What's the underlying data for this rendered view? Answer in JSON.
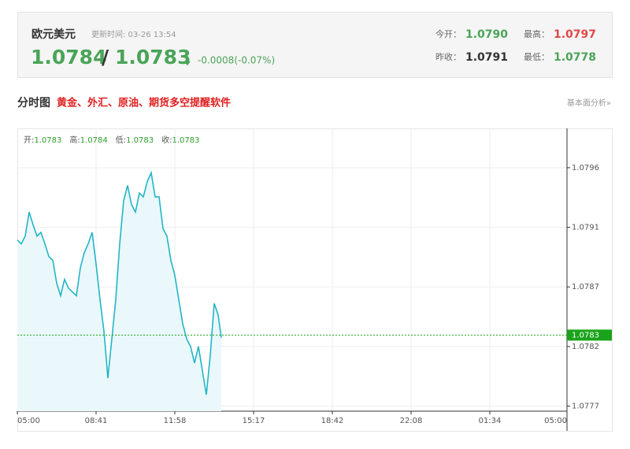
{
  "header": {
    "title": "欧元美元",
    "update_time": "更新时间: 03-26 13:54",
    "bid": "1.0784",
    "separator": "/",
    "ask": "1.0783",
    "change": "-0.0008(-0.07%)",
    "stats": [
      {
        "label": "今开：",
        "value": "1.0790"
      },
      {
        "label": "最高：",
        "value": "1.0797"
      },
      {
        "label": "昨收：",
        "value": "1.0791"
      },
      {
        "label": "最低：",
        "value": "1.0778"
      }
    ]
  },
  "section": {
    "title": "分时图",
    "promo": "黄金、外汇、原油、期货多空提醒软件",
    "link": "基本面分析»"
  },
  "chart_data": {
    "type": "line",
    "color": "#22b5c8",
    "area_color": "#eaf8fb",
    "grid": true,
    "ohlc": [
      {
        "label": "开:",
        "value": "1.0783"
      },
      {
        "label": "高:",
        "value": "1.0784"
      },
      {
        "label": "低:",
        "value": "1.0783"
      },
      {
        "label": "收:",
        "value": "1.0783"
      }
    ],
    "x": [
      0,
      0.05,
      0.1,
      0.15,
      0.2,
      0.25,
      0.3,
      0.35,
      0.4,
      0.45,
      0.5,
      0.55,
      0.6,
      0.65,
      0.7,
      0.75,
      0.8,
      0.85,
      0.9,
      0.95,
      1,
      1.05,
      1.1,
      1.15,
      1.2,
      1.25,
      1.3,
      1.35,
      1.4,
      1.45,
      1.5,
      1.55,
      1.6,
      1.65,
      1.7,
      1.75,
      1.8,
      1.85,
      1.9,
      1.95,
      2,
      2.05,
      2.1,
      2.15,
      2.2,
      2.25,
      2.3,
      2.35,
      2.4,
      2.45,
      2.5,
      2.55,
      2.59
    ],
    "values": [
      1.07905,
      1.07902,
      1.07908,
      1.07927,
      1.07917,
      1.07908,
      1.07911,
      1.07902,
      1.07892,
      1.07889,
      1.07871,
      1.07861,
      1.07874,
      1.07867,
      1.07864,
      1.07861,
      1.07883,
      1.07895,
      1.07902,
      1.07911,
      1.07886,
      1.07858,
      1.07833,
      1.07796,
      1.07827,
      1.07858,
      1.07902,
      1.07936,
      1.07948,
      1.07933,
      1.07927,
      1.07942,
      1.07939,
      1.07951,
      1.07958,
      1.07939,
      1.07939,
      1.07914,
      1.07908,
      1.07889,
      1.07877,
      1.07858,
      1.07839,
      1.07827,
      1.07821,
      1.07808,
      1.07821,
      1.07802,
      1.07783,
      1.07814,
      1.07855,
      1.07846,
      1.07828
    ],
    "last_price": 1.0783,
    "last_color": "#1aa31a",
    "xlim": [
      0,
      6.98
    ],
    "xticks": [
      {
        "value": 0,
        "label": "05:00"
      },
      {
        "value": 1,
        "label": "08:41"
      },
      {
        "value": 2,
        "label": "11:58"
      },
      {
        "value": 3,
        "label": "15:17"
      },
      {
        "value": 4,
        "label": "18:42"
      },
      {
        "value": 5,
        "label": "22:08"
      },
      {
        "value": 6,
        "label": "01:34"
      },
      {
        "value": 6.98,
        "label": "05:00"
      }
    ],
    "ylim": [
      1.0777,
      1.07993
    ],
    "yticks": [
      {
        "value": 1.07774,
        "label": "1.0777"
      },
      {
        "value": 1.07821,
        "label": "1.0782"
      },
      {
        "value": 1.07868,
        "label": "1.0787"
      },
      {
        "value": 1.07915,
        "label": "1.0791"
      },
      {
        "value": 1.07962,
        "label": "1.0796"
      }
    ]
  }
}
